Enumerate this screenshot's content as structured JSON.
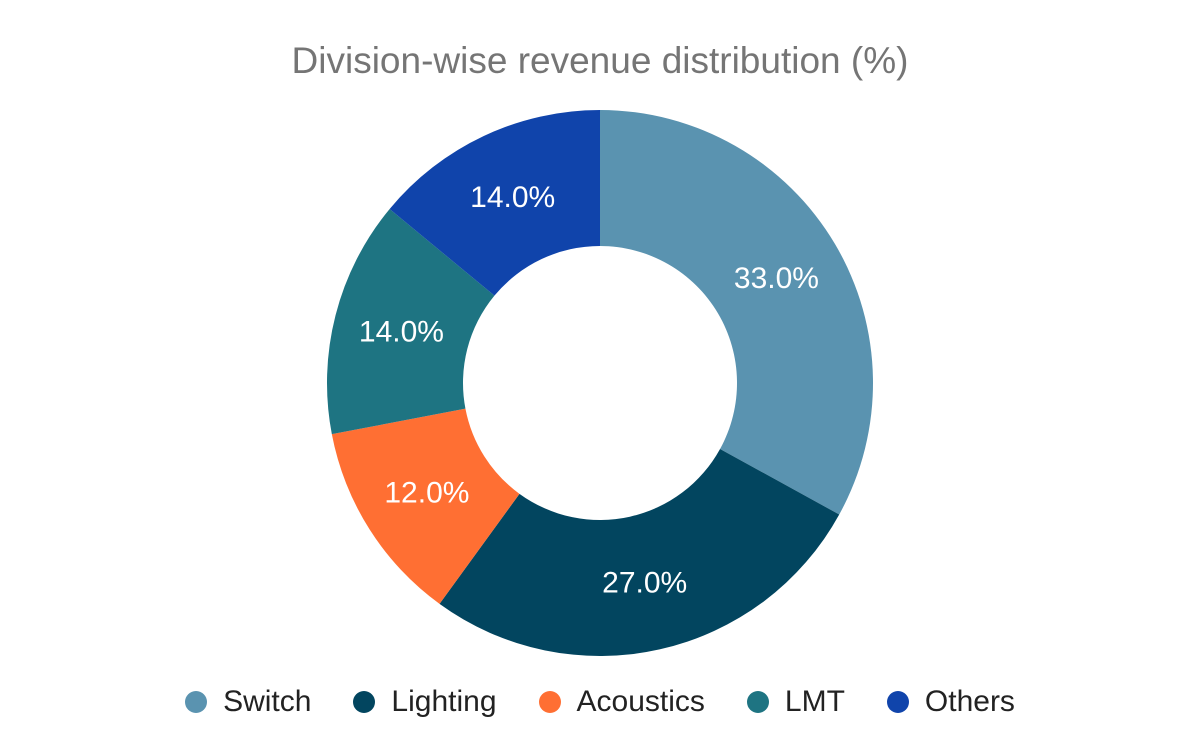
{
  "chart_data": {
    "type": "pie",
    "title": "Division-wise revenue distribution (%)",
    "donut": true,
    "legend_position": "bottom",
    "slices": [
      {
        "label": "Switch",
        "value": 33.0,
        "display": "33.0%",
        "color": "#5A93B0"
      },
      {
        "label": "Lighting",
        "value": 27.0,
        "display": "27.0%",
        "color": "#02455F"
      },
      {
        "label": "Acoustics",
        "value": 12.0,
        "display": "12.0%",
        "color": "#FF6F33"
      },
      {
        "label": "LMT",
        "value": 14.0,
        "display": "14.0%",
        "color": "#1E7482"
      },
      {
        "label": "Others",
        "value": 14.0,
        "display": "14.0%",
        "color": "#1044AB"
      }
    ]
  }
}
